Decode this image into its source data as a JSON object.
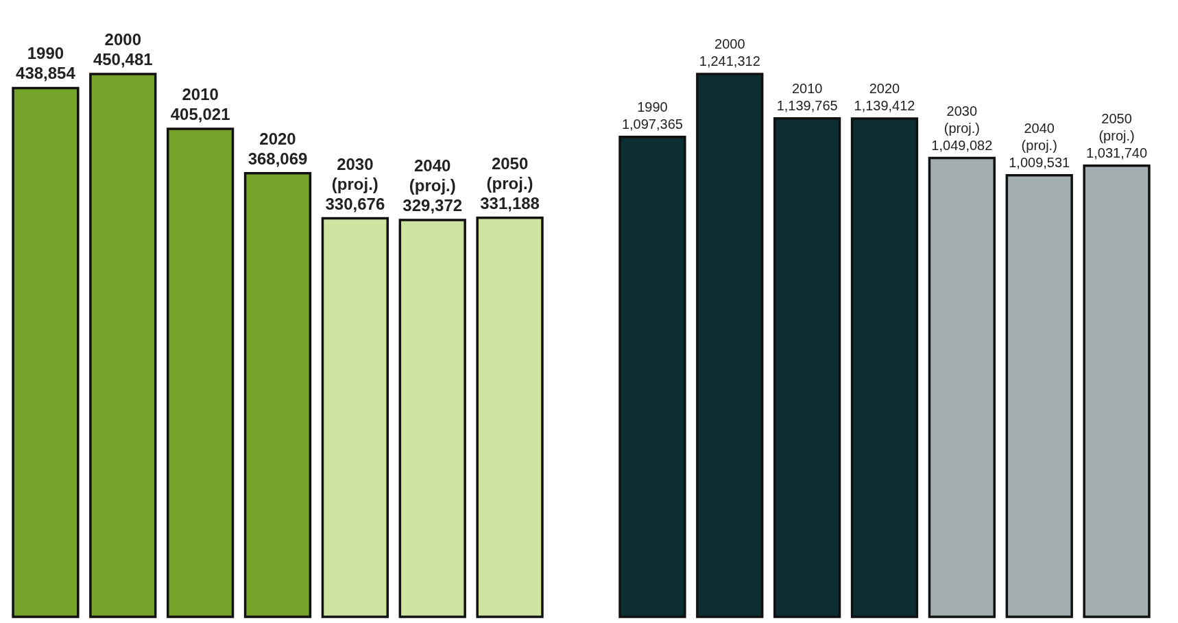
{
  "chart_data": [
    {
      "type": "bar",
      "categories": [
        "1990",
        "2000",
        "2010",
        "2020",
        "2030 (proj.)",
        "2040 (proj.)",
        "2050 (proj.)"
      ],
      "values": [
        438854,
        450481,
        405021,
        368069,
        330676,
        329372,
        331188
      ],
      "colors": [
        "#76a32a",
        "#76a32a",
        "#76a32a",
        "#76a32a",
        "#cfe3a0",
        "#cfe3a0",
        "#cfe3a0"
      ],
      "value_labels": [
        "438,854",
        "450,481",
        "405,021",
        "368,069",
        "330,676",
        "329,372",
        "331,188"
      ]
    },
    {
      "type": "bar",
      "categories": [
        "1990",
        "2000",
        "2010",
        "2020",
        "2030 (proj.)",
        "2040 (proj.)",
        "2050 (proj.)"
      ],
      "values": [
        1097365,
        1241312,
        1139765,
        1139412,
        1049082,
        1009531,
        1031740
      ],
      "colors": [
        "#0c2e33",
        "#0c2e33",
        "#0c2e33",
        "#0c2e33",
        "#a3aeb0",
        "#a3aeb0",
        "#a3aeb0"
      ],
      "value_labels": [
        "1,097,365",
        "1,241,312",
        "1,139,765",
        "1,139,412",
        "1,049,082",
        "1,009,531",
        "1,031,740"
      ]
    }
  ]
}
